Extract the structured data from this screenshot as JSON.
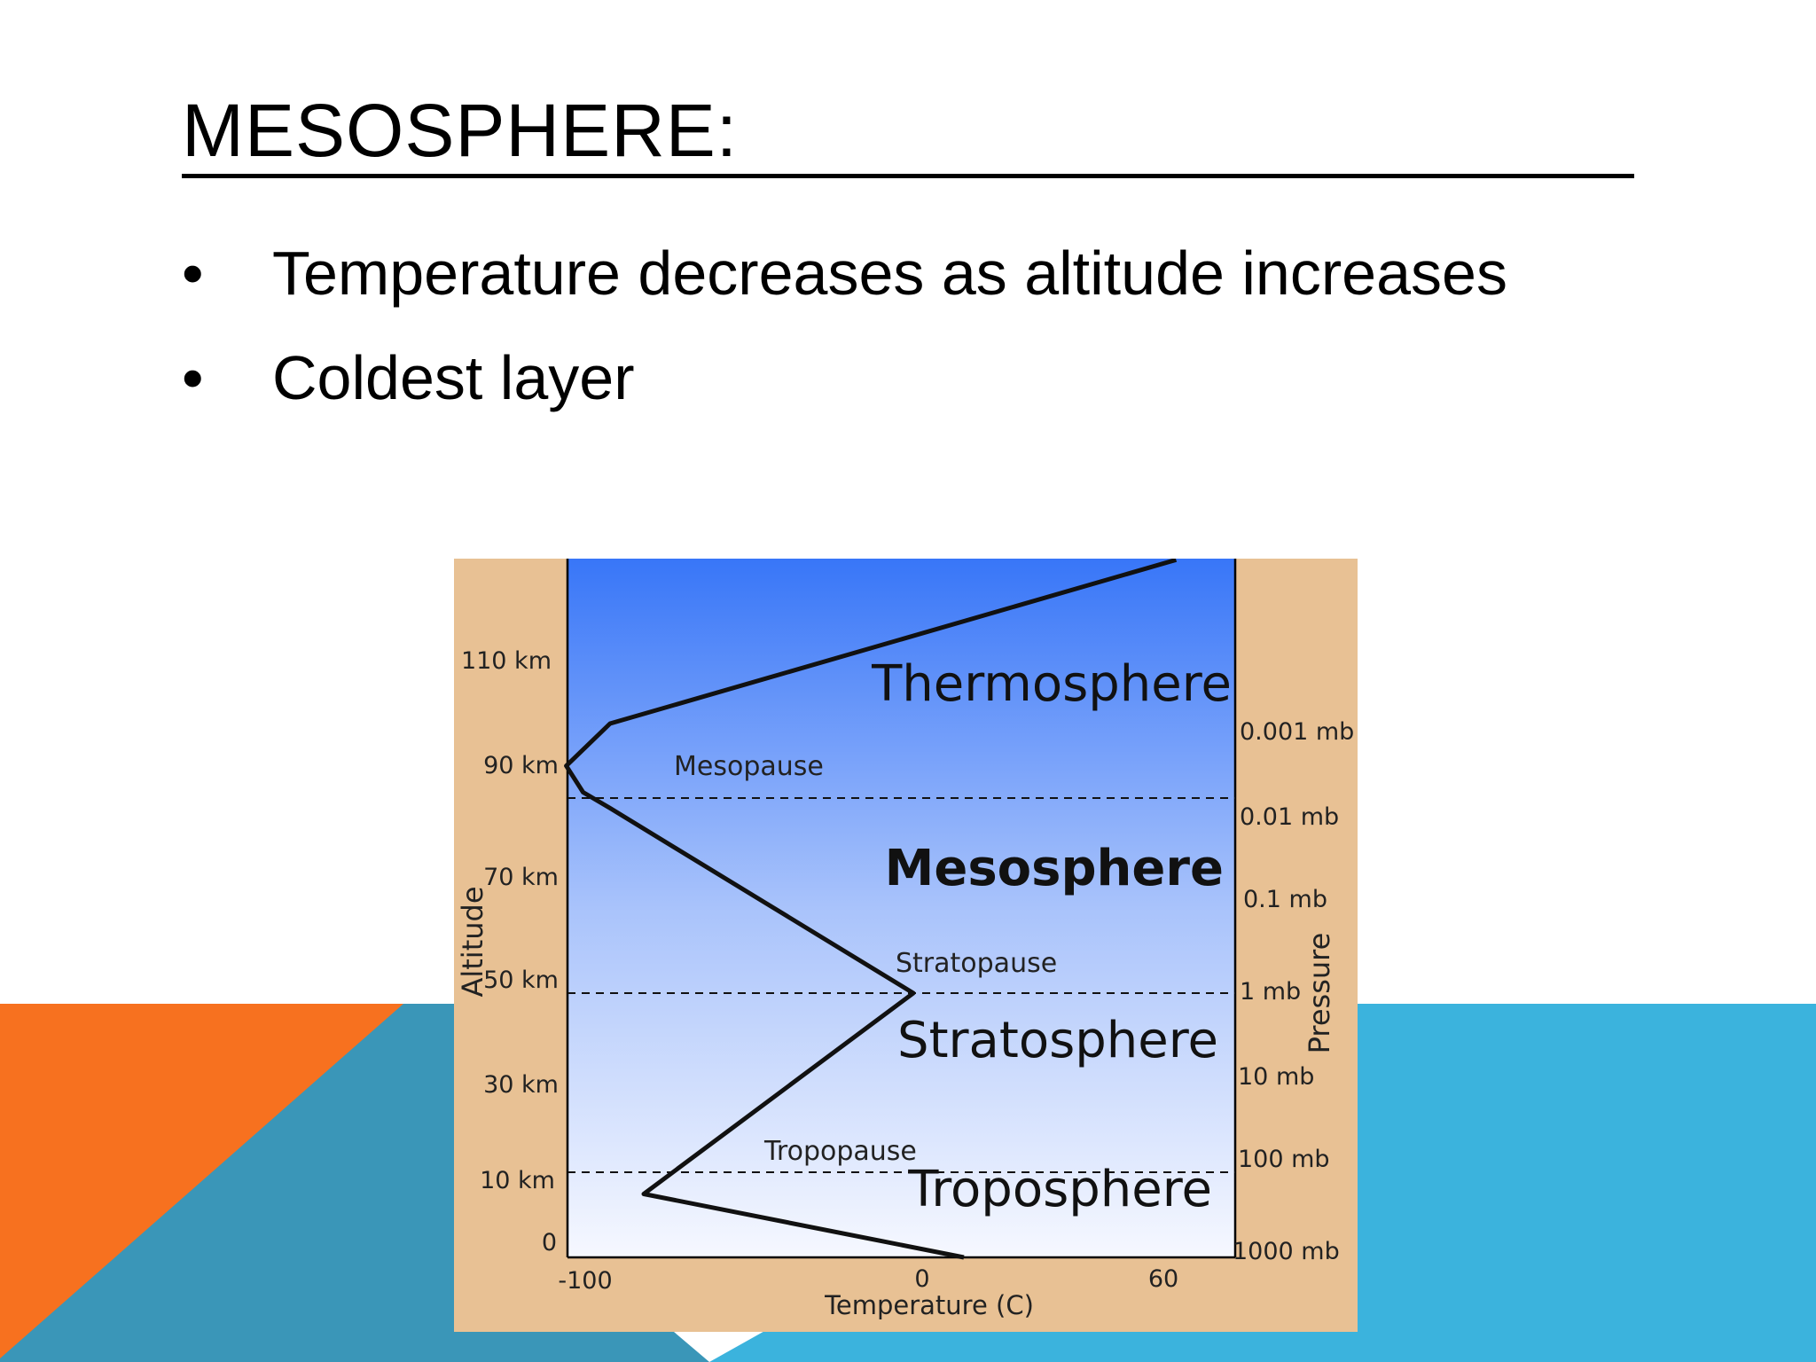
{
  "slide": {
    "title": "MESOSPHERE:",
    "bullets": [
      {
        "marker": "•",
        "text": "Temperature decreases as altitude increases"
      },
      {
        "marker": "•",
        "text": "Coldest layer"
      }
    ]
  },
  "colors": {
    "orange": "#f7711f",
    "blue_light": "#3bb3dd",
    "blue_dark": "#3a96b8",
    "figure_frame": "#e8c194",
    "sky_top": "#3876f8",
    "sky_bottom": "#f6f8ff"
  },
  "figure": {
    "axis_labels": {
      "altitude": "Altitude",
      "pressure": "Pressure",
      "temperature": "Temperature (C)"
    },
    "altitude_ticks": [
      "110 km",
      "90 km",
      "70 km",
      "50 km",
      "30 km",
      "10 km",
      "0"
    ],
    "pressure_ticks": [
      "0.001 mb",
      "0.01 mb",
      "0.1 mb",
      "1 mb",
      "10 mb",
      "100 mb",
      "1000 mb"
    ],
    "temperature_ticks": [
      "-100",
      "0",
      "60"
    ],
    "layers": [
      {
        "name": "Thermosphere"
      },
      {
        "name": "Mesosphere"
      },
      {
        "name": "Stratosphere"
      },
      {
        "name": "Troposphere"
      }
    ],
    "boundaries": [
      "Mesopause",
      "Stratopause",
      "Tropopause"
    ]
  },
  "chart_data": {
    "type": "line",
    "x_label": "Temperature (C)",
    "y_label": "Altitude",
    "secondary_y_label": "Pressure",
    "xlim": [
      -100,
      60
    ],
    "ylim": [
      0,
      110
    ],
    "series": [
      {
        "x": [
          15,
          -80,
          0,
          -90,
          -98,
          -103,
          -90,
          78
        ],
        "y": [
          0,
          12,
          50,
          85,
          88,
          93,
          101,
          132
        ]
      }
    ],
    "boundary_altitudes_km": [
      12,
      50,
      85
    ]
  }
}
